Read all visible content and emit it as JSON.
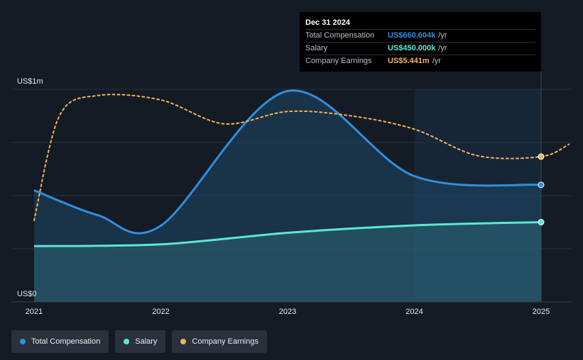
{
  "chart_data": {
    "type": "area",
    "y_axis": {
      "top_label": "US$1m",
      "bottom_label": "US$0",
      "ylim": [
        0,
        1200
      ]
    },
    "x_axis": {
      "ticks": [
        "2021",
        "2022",
        "2023",
        "2024",
        "2025"
      ],
      "xlim": [
        2021.0,
        2025.25
      ]
    },
    "series": [
      {
        "name": "Total Compensation",
        "color": "#2e8fe0",
        "unit": "US$k",
        "x": [
          2021.0,
          2021.5,
          2022.0,
          2023.0,
          2024.0,
          2025.0
        ],
        "values": [
          630,
          490,
          430,
          1190,
          710,
          660.604
        ]
      },
      {
        "name": "Salary",
        "color": "#5be8d4",
        "unit": "US$k",
        "x": [
          2021.0,
          2022.0,
          2023.0,
          2024.0,
          2025.0
        ],
        "values": [
          315,
          325,
          390,
          432,
          450
        ]
      },
      {
        "name": "Company Earnings",
        "color": "#f2b25c",
        "style": "dashed",
        "x": [
          2021.0,
          2021.2,
          2021.5,
          2022.0,
          2022.5,
          2023.0,
          2023.5,
          2024.0,
          2024.5,
          2025.0,
          2025.22
        ],
        "values": [
          460,
          1050,
          1165,
          1140,
          1005,
          1075,
          1050,
          975,
          825,
          820,
          890
        ]
      }
    ],
    "highlight_x": 2025.0,
    "highlight_band": [
      2024.0,
      2025.0
    ],
    "legend_position": "bottom-left",
    "grid": true
  },
  "tooltip": {
    "date": "Dec 31 2024",
    "rows": [
      {
        "name": "Total Compensation",
        "value": "US$660.604k",
        "unit": "/yr",
        "color": "#2e8fe0"
      },
      {
        "name": "Salary",
        "value": "US$450.000k",
        "unit": "/yr",
        "color": "#5be8d4"
      },
      {
        "name": "Company Earnings",
        "value": "US$5.441m",
        "unit": "/yr",
        "color": "#f2b25c"
      }
    ]
  },
  "legend": [
    {
      "label": "Total Compensation",
      "color": "#2e8fe0"
    },
    {
      "label": "Salary",
      "color": "#5be8d4"
    },
    {
      "label": "Company Earnings",
      "color": "#f2b25c"
    }
  ]
}
